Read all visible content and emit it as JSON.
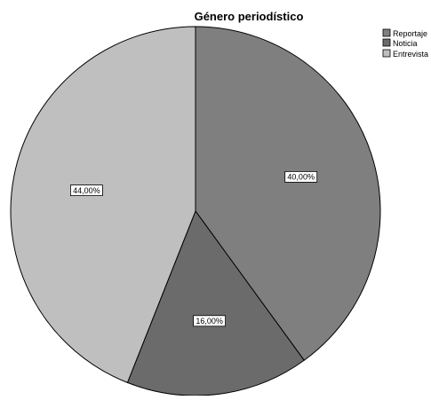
{
  "chart_data": {
    "type": "pie",
    "title": "Género periodístico",
    "categories": [
      "Reportaje",
      "Noticia",
      "Entrevista"
    ],
    "values": [
      40.0,
      16.0,
      44.0
    ],
    "value_labels": [
      "40,00%",
      "16,00%",
      "44,00%"
    ],
    "start_angle_deg": 0,
    "direction": "clockwise",
    "colors": [
      "#7f7f7f",
      "#6b6b6b",
      "#bfbfbf"
    ],
    "edge_color": "#000000",
    "legend": {
      "position": "top-right",
      "entries": [
        "Reportaje",
        "Noticia",
        "Entrevista"
      ]
    }
  }
}
